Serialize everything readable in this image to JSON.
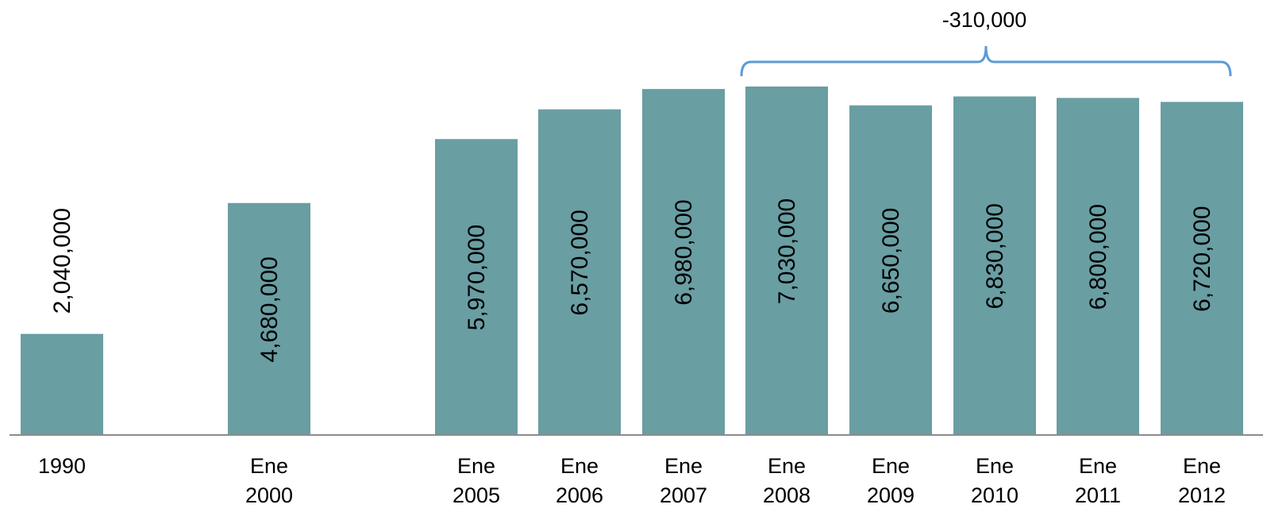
{
  "chart_data": {
    "type": "bar",
    "categories": [
      [
        "1990"
      ],
      [
        "Ene",
        "2000"
      ],
      [
        "Ene",
        "2005"
      ],
      [
        "Ene",
        "2006"
      ],
      [
        "Ene",
        "2007"
      ],
      [
        "Ene",
        "2008"
      ],
      [
        "Ene",
        "2009"
      ],
      [
        "Ene",
        "2010"
      ],
      [
        "Ene",
        "2011"
      ],
      [
        "Ene",
        "2012"
      ]
    ],
    "values": [
      2040000,
      4680000,
      5970000,
      6570000,
      6980000,
      7030000,
      6650000,
      6830000,
      6800000,
      6720000
    ],
    "data_labels": [
      "2,040,000",
      "4,680,000",
      "5,970,000",
      "6,570,000",
      "6,980,000",
      "7,030,000",
      "6,650,000",
      "6,830,000",
      "6,800,000",
      "6,720,000"
    ],
    "title": "",
    "xlabel": "",
    "ylabel": "",
    "ylim": [
      0,
      7030000
    ],
    "grid": false,
    "bar_color": "#699ea3",
    "bracket": {
      "from_category_index": 5,
      "to_category_index": 9,
      "label": "-310,000",
      "color": "#5b9bd5"
    }
  }
}
